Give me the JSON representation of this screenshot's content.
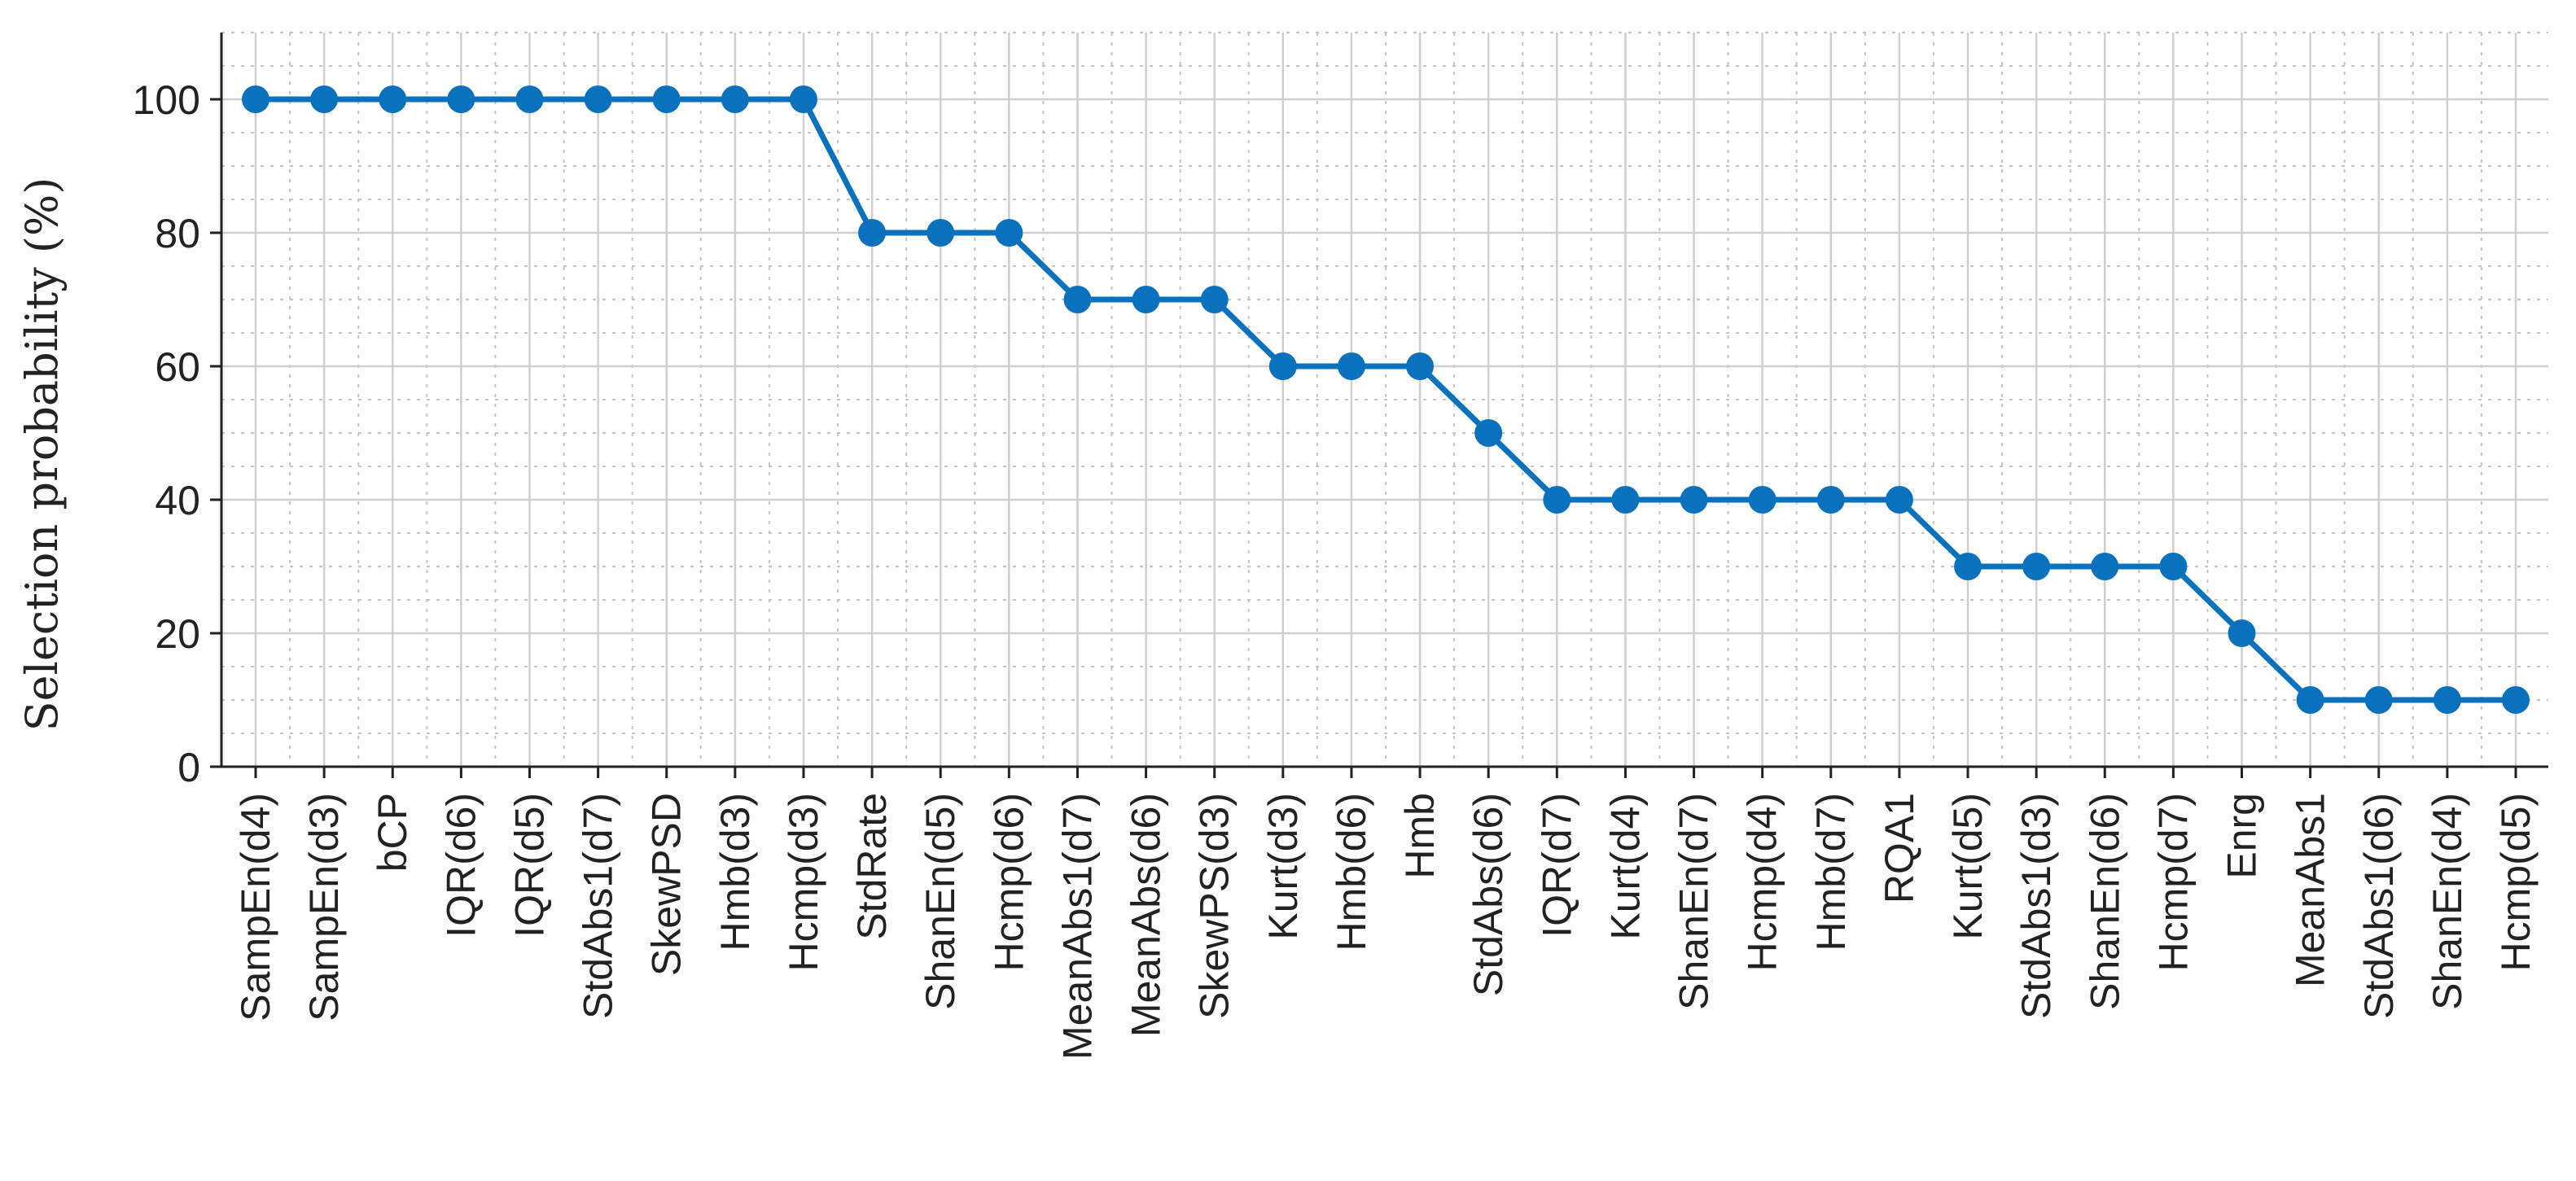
{
  "chart_data": {
    "type": "line",
    "title": "",
    "xlabel": "",
    "ylabel": "Selection probability (%)",
    "ylim": [
      0,
      110
    ],
    "yticks": [
      0,
      20,
      40,
      60,
      80,
      100
    ],
    "grid": true,
    "minor_grid": true,
    "legend": "none",
    "categories": [
      "SampEn(d4)",
      "SampEn(d3)",
      "bCP",
      "IQR(d6)",
      "IQR(d5)",
      "StdAbs1(d7)",
      "SkewPSD",
      "Hmb(d3)",
      "Hcmp(d3)",
      "StdRate",
      "ShanEn(d5)",
      "Hcmp(d6)",
      "MeanAbs1(d7)",
      "MeanAbs(d6)",
      "SkewPS(d3)",
      "Kurt(d3)",
      "Hmb(d6)",
      "Hmb",
      "StdAbs(d6)",
      "IQR(d7)",
      "Kurt(d4)",
      "ShanEn(d7)",
      "Hcmp(d4)",
      "Hmb(d7)",
      "RQA1",
      "Kurt(d5)",
      "StdAbs1(d3)",
      "ShanEn(d6)",
      "Hcmp(d7)",
      "Enrg",
      "MeanAbs1",
      "StdAbs1(d6)",
      "ShanEn(d4)",
      "Hcmp(d5)"
    ],
    "series": [
      {
        "values": [
          100,
          100,
          100,
          100,
          100,
          100,
          100,
          100,
          100,
          80,
          80,
          80,
          70,
          70,
          70,
          60,
          60,
          60,
          50,
          40,
          40,
          40,
          40,
          40,
          40,
          30,
          30,
          30,
          30,
          20,
          10,
          10,
          10,
          10
        ]
      }
    ]
  },
  "colors": {
    "series": "#0a72bd",
    "axis": "#222222",
    "major_grid": "#cfcfcf",
    "minor_grid": "#c4c4c4"
  }
}
